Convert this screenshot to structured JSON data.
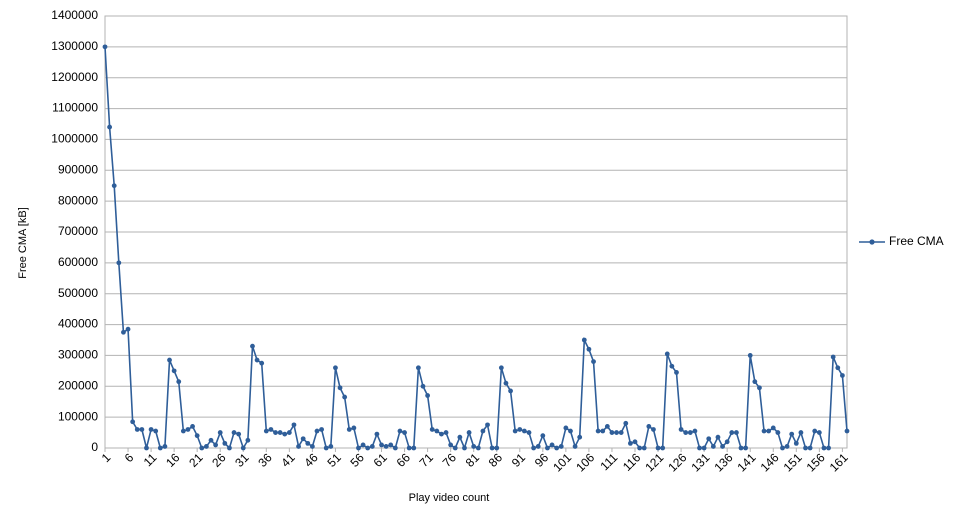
{
  "chart_data": {
    "type": "line",
    "x_label": "Play video count",
    "y_label": "Free CMA [kB]",
    "x": [
      1,
      2,
      3,
      4,
      5,
      6,
      7,
      8,
      9,
      10,
      11,
      12,
      13,
      14,
      15,
      16,
      17,
      18,
      19,
      20,
      21,
      22,
      23,
      24,
      25,
      26,
      27,
      28,
      29,
      30,
      31,
      32,
      33,
      34,
      35,
      36,
      37,
      38,
      39,
      40,
      41,
      42,
      43,
      44,
      45,
      46,
      47,
      48,
      49,
      50,
      51,
      52,
      53,
      54,
      55,
      56,
      57,
      58,
      59,
      60,
      61,
      62,
      63,
      64,
      65,
      66,
      67,
      68,
      69,
      70,
      71,
      72,
      73,
      74,
      75,
      76,
      77,
      78,
      79,
      80,
      81,
      82,
      83,
      84,
      85,
      86,
      87,
      88,
      89,
      90,
      91,
      92,
      93,
      94,
      95,
      96,
      97,
      98,
      99,
      100,
      101,
      102,
      103,
      104,
      105,
      106,
      107,
      108,
      109,
      110,
      111,
      112,
      113,
      114,
      115,
      116,
      117,
      118,
      119,
      120,
      121,
      122,
      123,
      124,
      125,
      126,
      127,
      128,
      129,
      130,
      131,
      132,
      133,
      134,
      135,
      136,
      137,
      138,
      139,
      140,
      141,
      142,
      143,
      144,
      145,
      146,
      147,
      148,
      149,
      150,
      151,
      152,
      153,
      154,
      155,
      156,
      157,
      158,
      159,
      160,
      161,
      162
    ],
    "series": [
      {
        "name": "Free CMA",
        "color": "#2f5e99",
        "values": [
          1300000,
          1040000,
          850000,
          600000,
          375000,
          385000,
          85000,
          60000,
          60000,
          0,
          60000,
          55000,
          0,
          5000,
          285000,
          250000,
          215000,
          55000,
          60000,
          70000,
          40000,
          0,
          5000,
          25000,
          10000,
          50000,
          15000,
          0,
          50000,
          45000,
          0,
          25000,
          330000,
          285000,
          275000,
          55000,
          60000,
          50000,
          50000,
          45000,
          50000,
          75000,
          5000,
          30000,
          15000,
          5000,
          55000,
          60000,
          0,
          5000,
          260000,
          195000,
          165000,
          60000,
          65000,
          0,
          10000,
          0,
          5000,
          45000,
          10000,
          5000,
          10000,
          0,
          55000,
          50000,
          0,
          0,
          260000,
          200000,
          170000,
          60000,
          55000,
          45000,
          50000,
          10000,
          0,
          35000,
          0,
          50000,
          5000,
          0,
          55000,
          75000,
          0,
          0,
          260000,
          210000,
          185000,
          55000,
          60000,
          55000,
          50000,
          0,
          5000,
          40000,
          0,
          10000,
          0,
          5000,
          65000,
          55000,
          5000,
          35000,
          350000,
          320000,
          280000,
          55000,
          55000,
          70000,
          50000,
          50000,
          50000,
          80000,
          15000,
          20000,
          0,
          0,
          70000,
          60000,
          0,
          0,
          305000,
          265000,
          245000,
          60000,
          50000,
          50000,
          55000,
          0,
          0,
          30000,
          5000,
          35000,
          5000,
          20000,
          50000,
          50000,
          0,
          0,
          300000,
          215000,
          195000,
          55000,
          55000,
          65000,
          50000,
          0,
          5000,
          45000,
          15000,
          50000,
          0,
          0,
          55000,
          50000,
          0,
          0,
          295000,
          260000,
          235000,
          55000
        ]
      }
    ],
    "xlim": [
      1,
      162
    ],
    "xticks": [
      1,
      6,
      11,
      16,
      21,
      26,
      31,
      36,
      41,
      46,
      51,
      56,
      61,
      66,
      71,
      76,
      81,
      86,
      91,
      96,
      101,
      106,
      111,
      116,
      121,
      126,
      131,
      136,
      141,
      146,
      151,
      156,
      161
    ],
    "ylim": [
      0,
      1400000
    ],
    "yticks": [
      0,
      100000,
      200000,
      300000,
      400000,
      500000,
      600000,
      700000,
      800000,
      900000,
      1000000,
      1100000,
      1200000,
      1300000,
      1400000
    ],
    "grid": true,
    "legend": "right"
  }
}
